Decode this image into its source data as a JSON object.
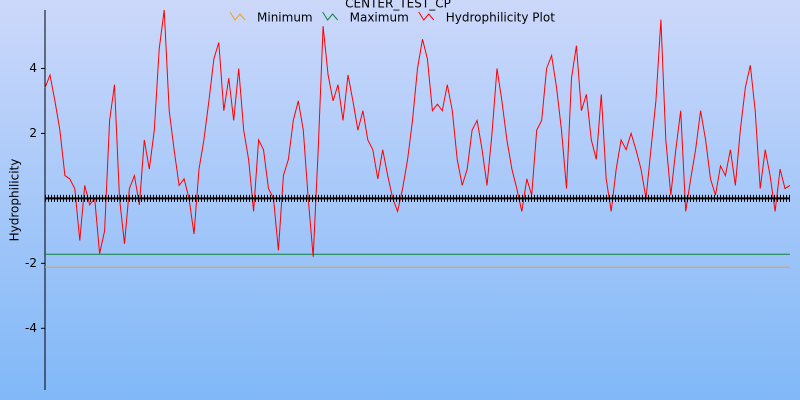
{
  "chart_data": {
    "type": "line",
    "title": "CENTER_TEST_CP",
    "y_label": "Hydrophilicity",
    "ylim": [
      -5.9,
      5.8
    ],
    "yticks": [
      -4,
      -2,
      2,
      4
    ],
    "reference_line": {
      "value": 0,
      "color": "#000000"
    },
    "series": [
      {
        "name": "Minimum",
        "color": "#f0a020",
        "values": [
          -2.12,
          -2.12
        ]
      },
      {
        "name": "Maximum",
        "color": "#108040",
        "values": [
          -1.72,
          -1.72
        ]
      },
      {
        "name": "Hydrophilicity Plot",
        "color": "#ff0000",
        "values": [
          3.4,
          3.8,
          3.0,
          2.1,
          0.7,
          0.6,
          0.3,
          -1.3,
          0.4,
          -0.2,
          0,
          -1.7,
          -1.0,
          2.4,
          3.5,
          0,
          -1.4,
          0.3,
          0.7,
          -0.2,
          1.8,
          0.9,
          2.1,
          4.6,
          5.8,
          2.7,
          1.5,
          0.4,
          0.6,
          0,
          -1.1,
          0.9,
          1.8,
          3.0,
          4.3,
          4.8,
          2.7,
          3.7,
          2.4,
          4.0,
          2.1,
          1.2,
          -0.4,
          1.8,
          1.5,
          0.3,
          0,
          -1.6,
          0.7,
          1.2,
          2.4,
          3.0,
          2.1,
          0,
          -1.8,
          1.5,
          5.3,
          3.8,
          3.0,
          3.5,
          2.4,
          3.8,
          3.0,
          2.1,
          2.7,
          1.8,
          1.5,
          0.6,
          1.5,
          0.7,
          0,
          -0.4,
          0.3,
          1.2,
          2.4,
          4.0,
          4.9,
          4.3,
          2.7,
          2.9,
          2.7,
          3.5,
          2.7,
          1.2,
          0.4,
          0.9,
          2.1,
          2.4,
          1.5,
          0.4,
          2.0,
          4.0,
          3.0,
          1.8,
          0.9,
          0.3,
          -0.4,
          0.6,
          0.1,
          2.1,
          2.4,
          4.0,
          4.4,
          3.4,
          2.1,
          0.3,
          3.7,
          4.7,
          2.7,
          3.2,
          1.8,
          1.2,
          3.2,
          0.6,
          -0.4,
          0.9,
          1.8,
          1.5,
          2.0,
          1.5,
          0.9,
          0,
          1.5,
          3.0,
          5.5,
          1.8,
          0.1,
          1.5,
          2.7,
          -0.4,
          0.6,
          1.5,
          2.7,
          1.8,
          0.6,
          0.1,
          1.0,
          0.7,
          1.5,
          0.4,
          2.1,
          3.4,
          4.1,
          2.7,
          0.3,
          1.5,
          0.7,
          -0.4,
          0.9,
          0.3,
          0.4
        ]
      }
    ]
  }
}
